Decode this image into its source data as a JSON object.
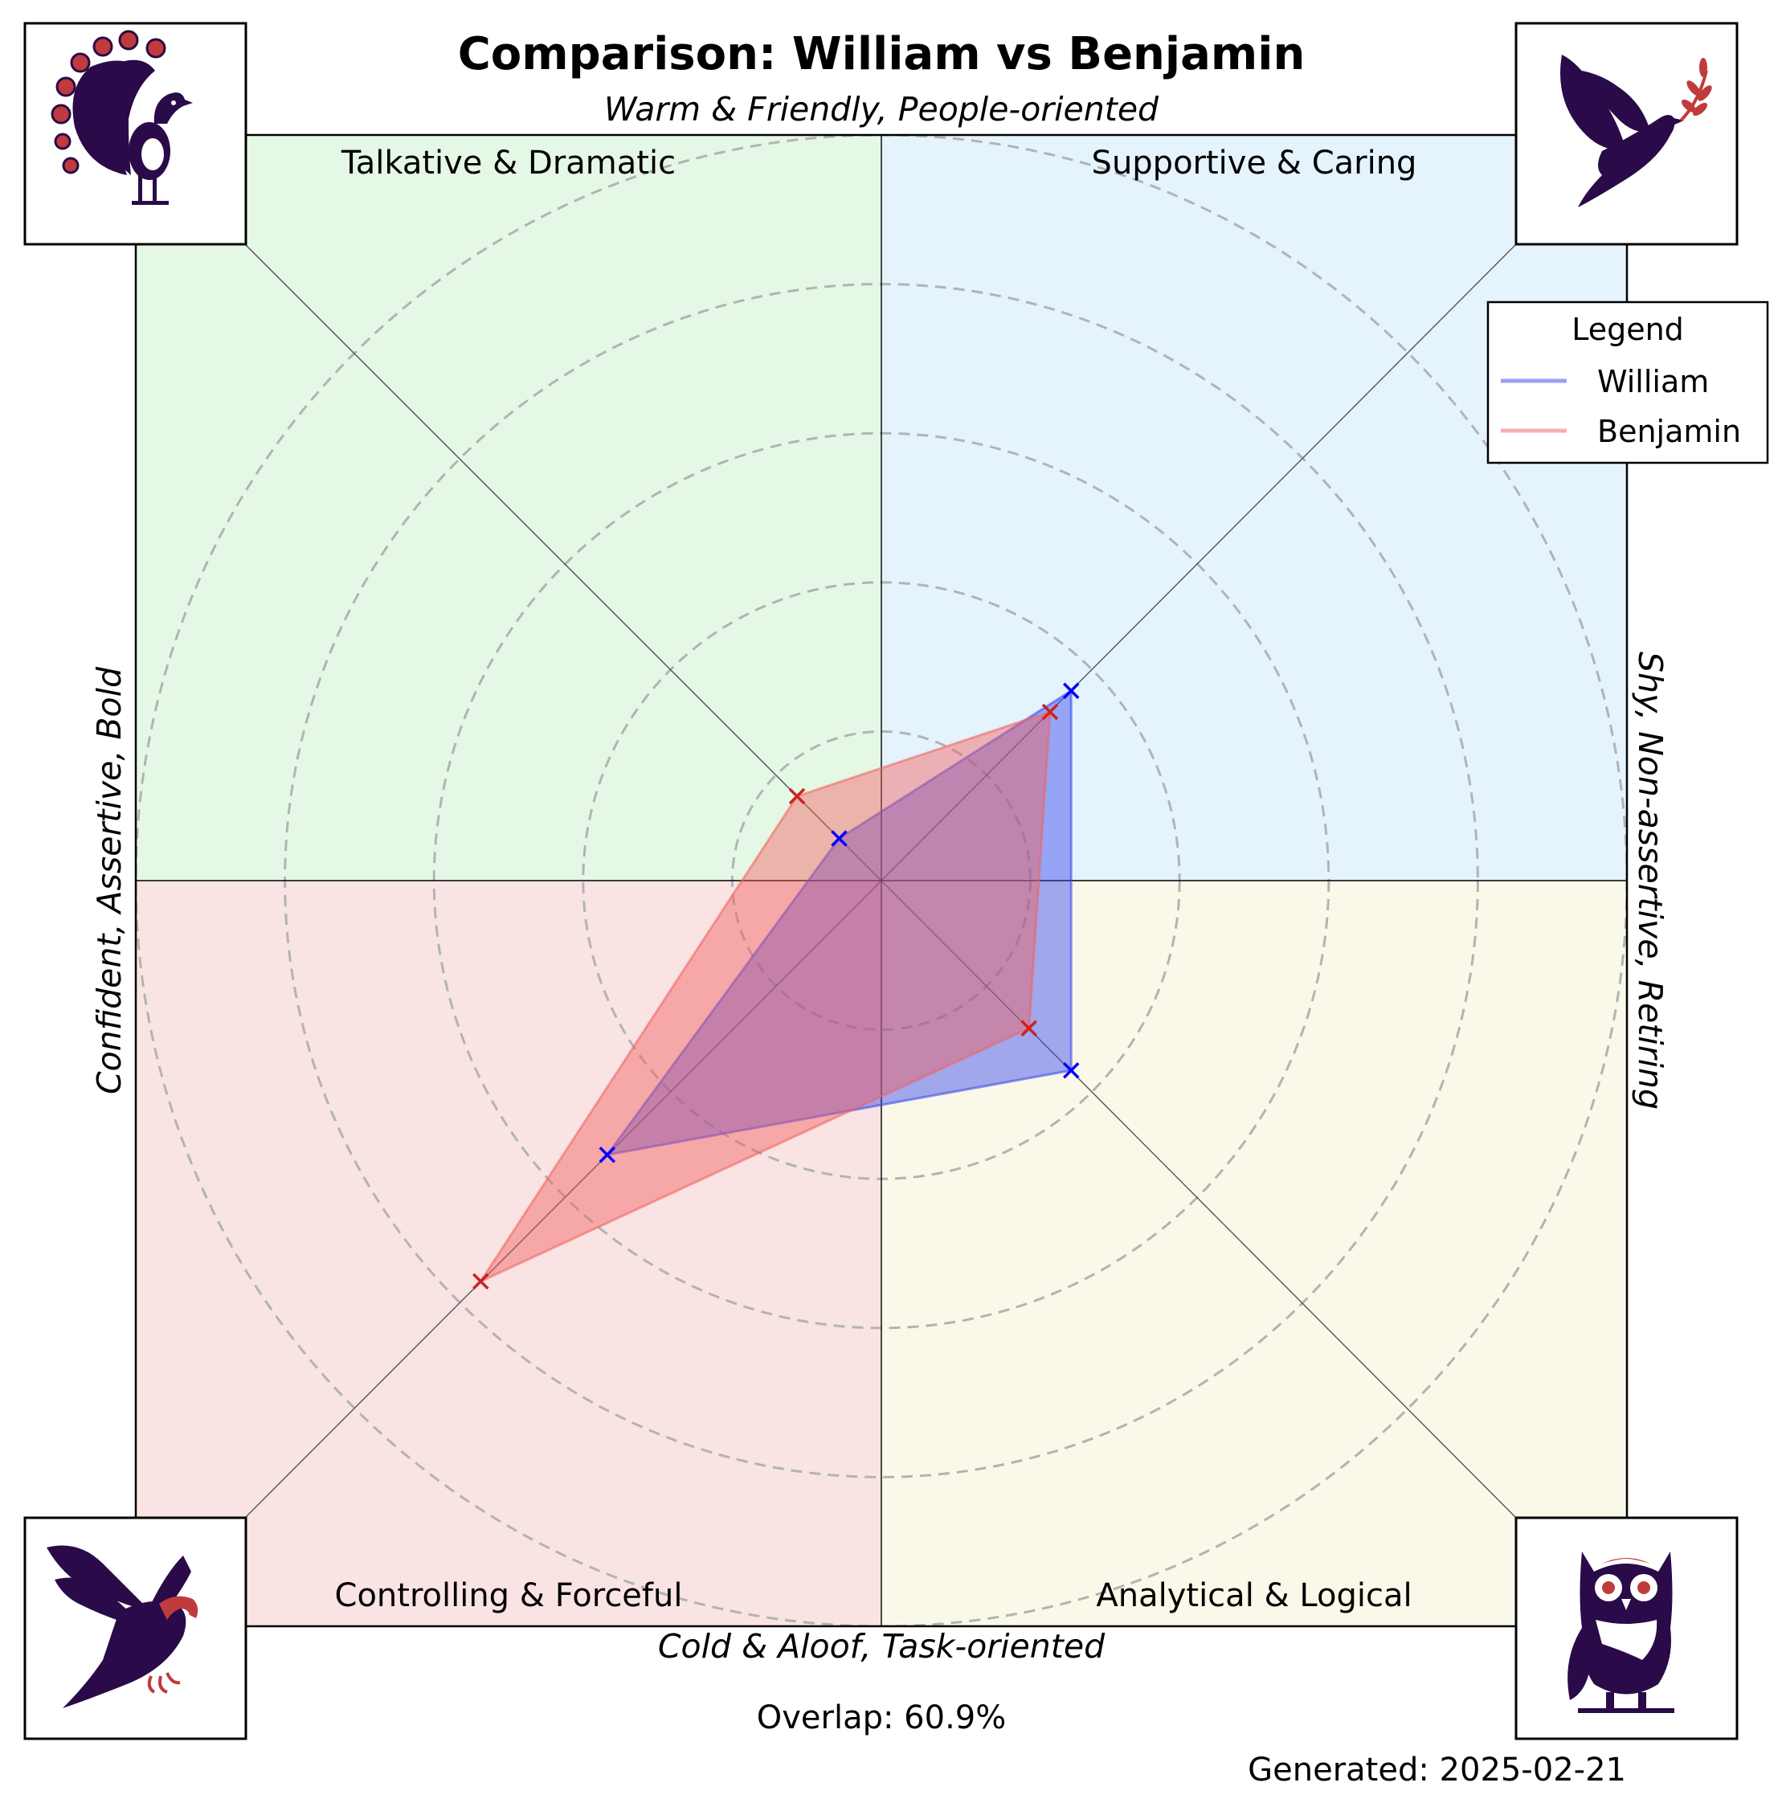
{
  "title": "Comparison: William vs Benjamin",
  "axes": {
    "top": "Warm & Friendly, People-oriented",
    "bottom": "Cold & Aloof, Task-oriented",
    "left": "Confident, Assertive, Bold",
    "right": "Shy, Non-assertive, Retiring"
  },
  "quadrants": [
    {
      "label": "Talkative & Dramatic",
      "color": "#e5f8e5",
      "icon": "peacock-icon"
    },
    {
      "label": "Supportive & Caring",
      "color": "#e5f3fc",
      "icon": "dove-icon"
    },
    {
      "label": "Controlling & Forceful",
      "color": "#f9e3e3",
      "icon": "eagle-icon"
    },
    {
      "label": "Analytical & Logical",
      "color": "#faf8e8",
      "icon": "owl-icon"
    }
  ],
  "legend": {
    "title": "Legend"
  },
  "footer": {
    "overlap": "Overlap: 60.9%",
    "generated": "Generated: 2025-02-21"
  },
  "chart_data": {
    "type": "radar",
    "axes_order": [
      "Talkative & Dramatic",
      "Supportive & Caring",
      "Analytical & Logical",
      "Controlling & Forceful"
    ],
    "rmax": 5,
    "ring_step": 1,
    "series": [
      {
        "name": "William",
        "color": "#0000ff",
        "fill": "#3344ee",
        "values": [
          0.4,
          1.8,
          1.8,
          2.6
        ]
      },
      {
        "name": "Benjamin",
        "color": "#cc2222",
        "fill": "#f26060",
        "values": [
          0.8,
          1.6,
          1.4,
          3.8
        ]
      }
    ]
  }
}
